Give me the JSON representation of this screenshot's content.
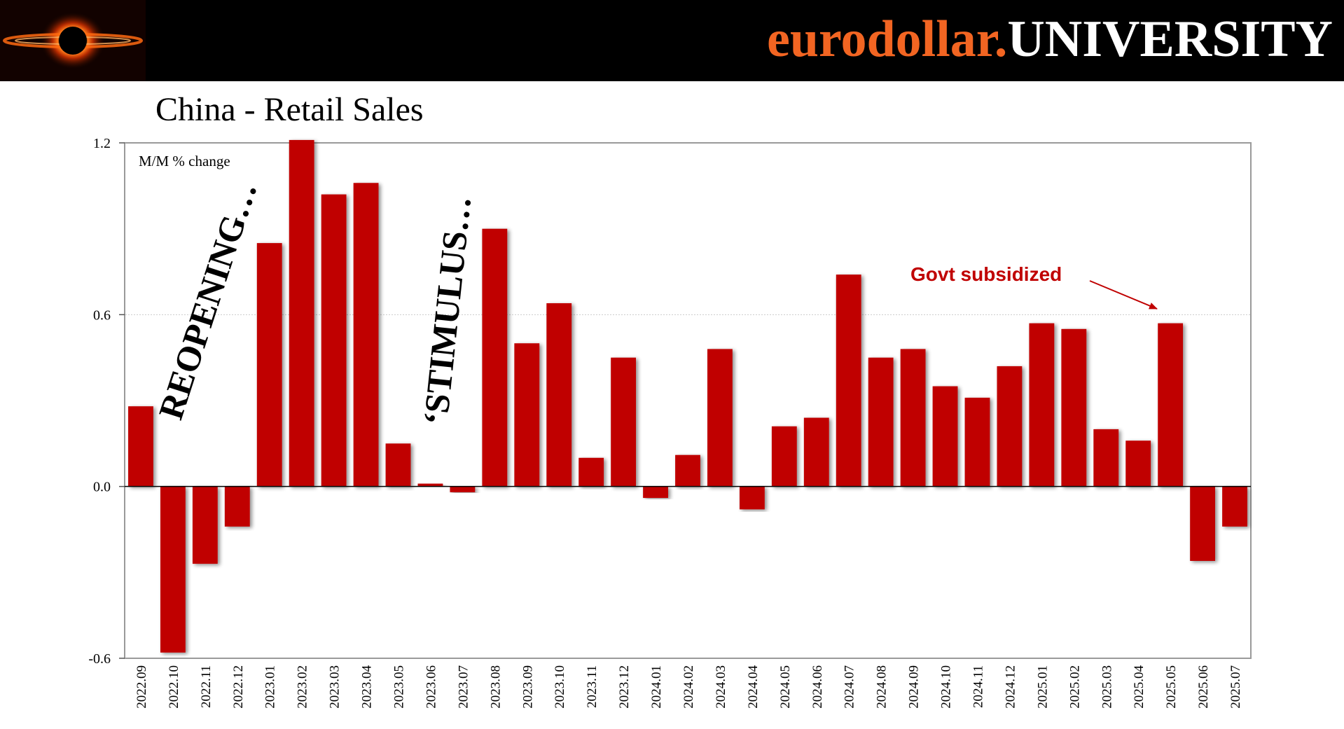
{
  "header": {
    "brand_part1": "eurodollar.",
    "brand_part2": "UNIVERSITY",
    "logo_icon": "black-hole-logo-icon",
    "colors": {
      "background": "#000000",
      "orange": "#f26522",
      "white": "#ffffff"
    }
  },
  "chart_data": {
    "type": "bar",
    "title": "China - Retail Sales",
    "unit_label": "M/M % change",
    "xlabel": "",
    "ylabel": "",
    "ylim": [
      -0.6,
      1.2
    ],
    "yticks": [
      "1.2",
      "0.6",
      "0.0",
      "-0.6"
    ],
    "ytick_values": [
      1.2,
      0.6,
      0.0,
      -0.6
    ],
    "gridline": 0.6,
    "bar_color": "#c00000",
    "categories": [
      "2022.09",
      "2022.10",
      "2022.11",
      "2022.12",
      "2023.01",
      "2023.02",
      "2023.03",
      "2023.04",
      "2023.05",
      "2023.06",
      "2023.07",
      "2023.08",
      "2023.09",
      "2023.10",
      "2023.11",
      "2023.12",
      "2024.01",
      "2024.02",
      "2024.03",
      "2024.04",
      "2024.05",
      "2024.06",
      "2024.07",
      "2024.08",
      "2024.09",
      "2024.10",
      "2024.11",
      "2024.12",
      "2025.01",
      "2025.02",
      "2025.03",
      "2025.04",
      "2025.05",
      "2025.06",
      "2025.07"
    ],
    "values": [
      0.28,
      -0.58,
      -0.27,
      -0.14,
      0.85,
      1.21,
      1.02,
      1.06,
      0.15,
      0.01,
      -0.02,
      0.9,
      0.5,
      0.64,
      0.1,
      0.45,
      -0.04,
      0.11,
      0.48,
      -0.08,
      0.21,
      0.24,
      0.74,
      0.45,
      0.48,
      0.35,
      0.31,
      0.42,
      0.57,
      0.55,
      0.2,
      0.16,
      0.57,
      -0.26,
      -0.14
    ],
    "annotations": [
      {
        "text": "REOPENING…",
        "kind": "rotated"
      },
      {
        "text": "‘STIMULUS…",
        "kind": "rotated"
      },
      {
        "text": "Govt subsidized",
        "kind": "arrow",
        "target": "2025.05",
        "color": "#c00000"
      }
    ]
  }
}
